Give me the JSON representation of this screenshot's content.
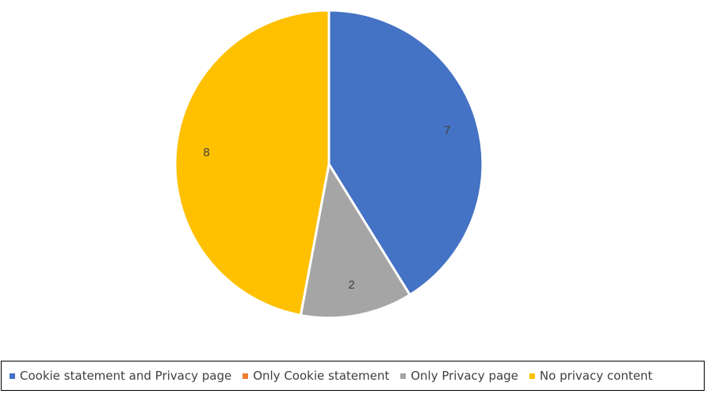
{
  "chart_data": {
    "type": "pie",
    "title": "",
    "categories": [
      "Cookie statement and Privacy page",
      "Only Cookie statement",
      "Only Privacy page",
      "No privacy content"
    ],
    "values": [
      7,
      0,
      2,
      8
    ],
    "colors": [
      "#4472C4",
      "#ED7D31",
      "#A5A5A5",
      "#FFC000"
    ],
    "data_labels": [
      "7",
      "",
      "2",
      "8"
    ],
    "legend_position": "bottom"
  }
}
